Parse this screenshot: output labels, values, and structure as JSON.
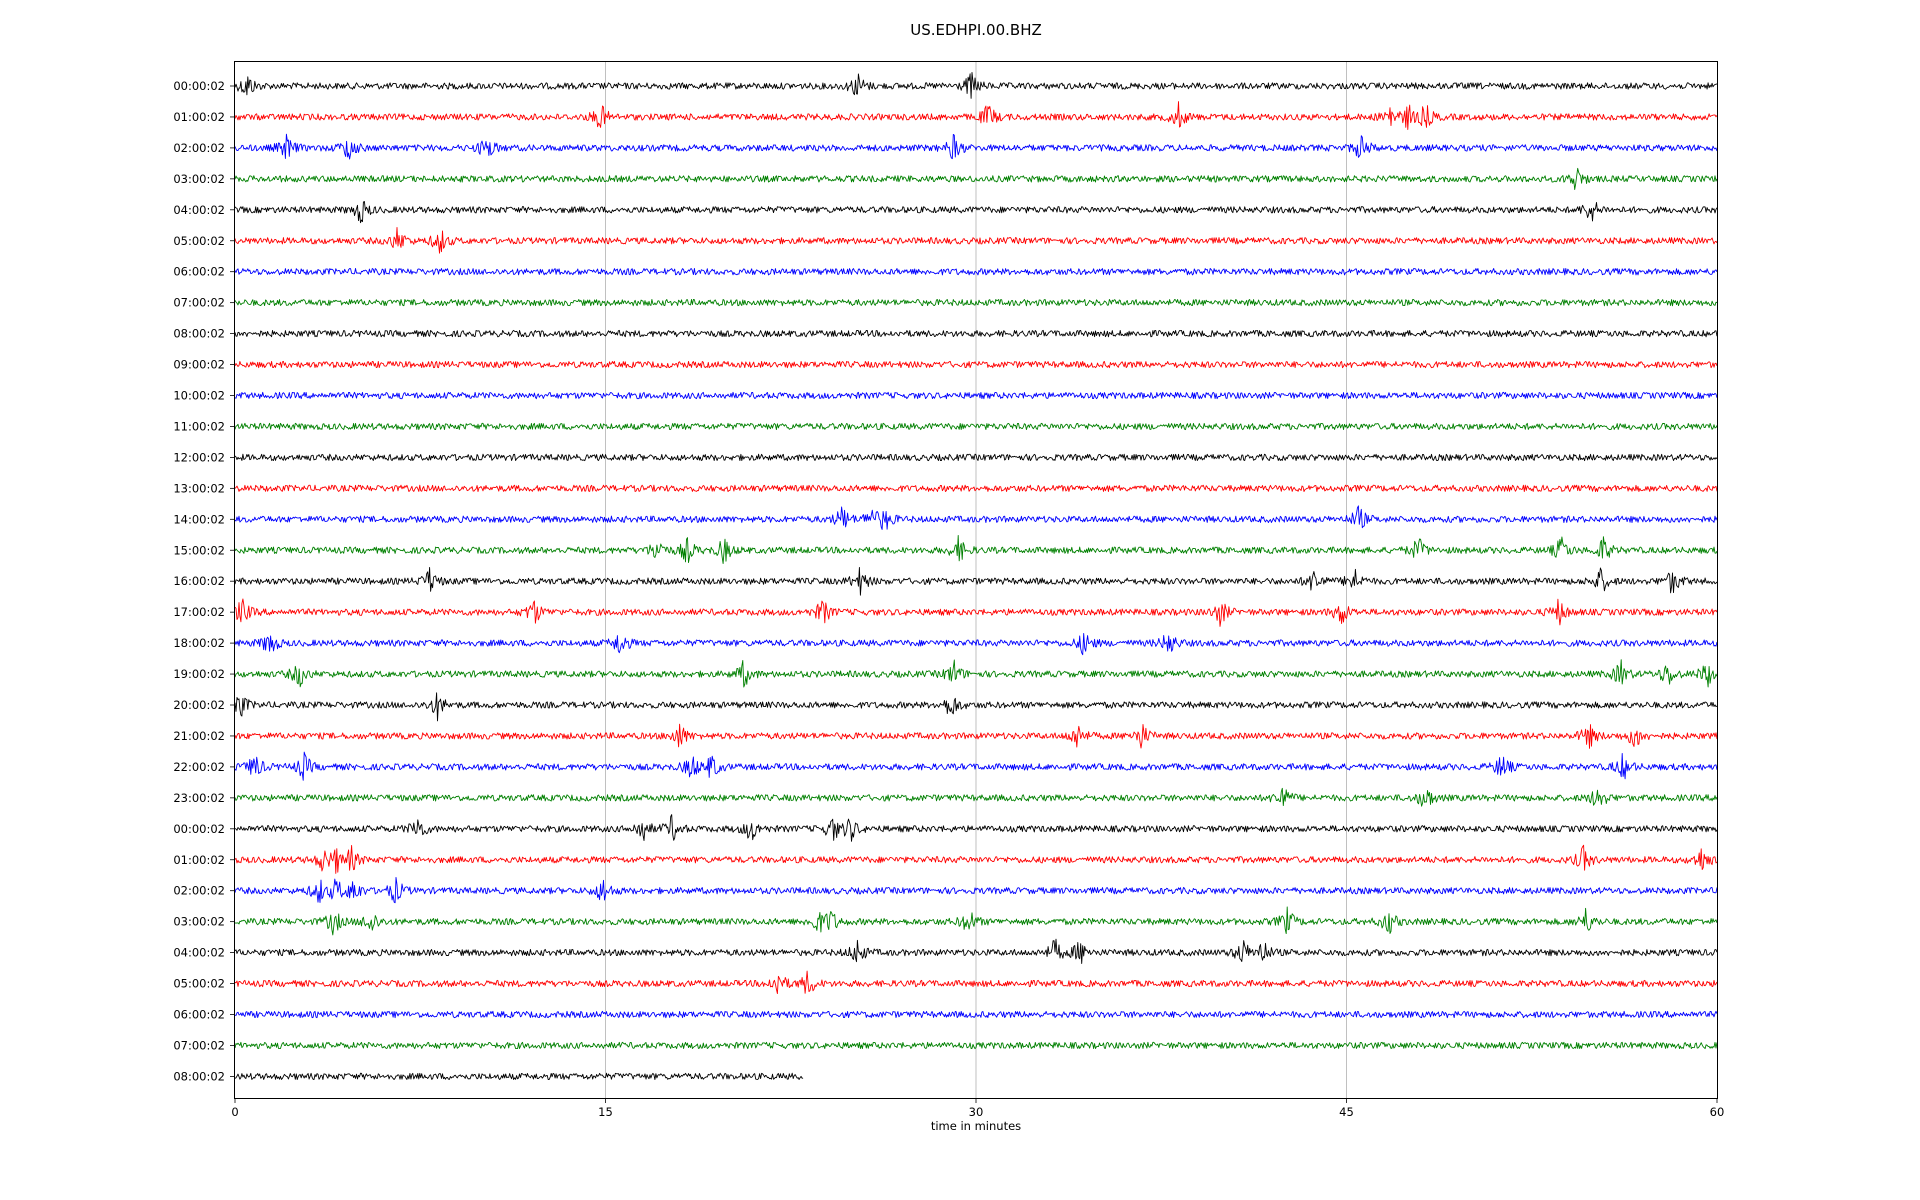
{
  "chart_data": {
    "type": "line",
    "title": "US.EDHPI.00.BHZ",
    "xlabel": "time in minutes",
    "ylabel": "",
    "xlim": [
      0,
      60
    ],
    "x_ticks": [
      "0",
      "15",
      "30",
      "45",
      "60"
    ],
    "x_tick_values": [
      0,
      15,
      30,
      45,
      60
    ],
    "grid": "vertical",
    "color_cycle": [
      "#000000",
      "#ff0000",
      "#0000ff",
      "#008000"
    ],
    "rows": [
      {
        "label": "00:00:02",
        "end_minute": 60,
        "events": [
          0.5,
          25.2,
          29.8
        ]
      },
      {
        "label": "01:00:02",
        "end_minute": 60,
        "events": [
          14.8,
          30.5,
          38.2,
          46.8,
          47.5,
          48.2
        ]
      },
      {
        "label": "02:00:02",
        "end_minute": 60,
        "events": [
          2.1,
          4.6,
          10.2,
          29.1,
          45.6
        ]
      },
      {
        "label": "03:00:02",
        "end_minute": 60,
        "events": [
          54.3
        ]
      },
      {
        "label": "04:00:02",
        "end_minute": 60,
        "events": [
          5.1,
          54.9
        ]
      },
      {
        "label": "05:00:02",
        "end_minute": 60,
        "events": [
          6.6,
          8.3
        ]
      },
      {
        "label": "06:00:02",
        "end_minute": 60,
        "events": []
      },
      {
        "label": "07:00:02",
        "end_minute": 60,
        "events": []
      },
      {
        "label": "08:00:02",
        "end_minute": 60,
        "events": []
      },
      {
        "label": "09:00:02",
        "end_minute": 60,
        "events": []
      },
      {
        "label": "10:00:02",
        "end_minute": 60,
        "events": []
      },
      {
        "label": "11:00:02",
        "end_minute": 60,
        "events": []
      },
      {
        "label": "12:00:02",
        "end_minute": 60,
        "events": []
      },
      {
        "label": "13:00:02",
        "end_minute": 60,
        "events": []
      },
      {
        "label": "14:00:02",
        "end_minute": 60,
        "events": [
          24.6,
          25.8,
          26.3,
          45.5
        ]
      },
      {
        "label": "15:00:02",
        "end_minute": 60,
        "events": [
          17.1,
          18.3,
          19.8,
          29.3,
          47.9,
          53.7,
          55.4
        ]
      },
      {
        "label": "16:00:02",
        "end_minute": 60,
        "events": [
          7.9,
          25.3,
          43.7,
          45.3,
          55.3,
          58.2
        ]
      },
      {
        "label": "17:00:02",
        "end_minute": 60,
        "events": [
          0.3,
          12.1,
          23.8,
          39.9,
          44.8,
          53.6
        ]
      },
      {
        "label": "18:00:02",
        "end_minute": 60,
        "events": [
          1.4,
          15.6,
          34.4,
          37.8
        ]
      },
      {
        "label": "19:00:02",
        "end_minute": 60,
        "events": [
          2.6,
          20.6,
          29.1,
          56.1,
          58.0,
          59.6
        ]
      },
      {
        "label": "20:00:02",
        "end_minute": 60,
        "events": [
          0.2,
          8.2,
          29.0
        ]
      },
      {
        "label": "21:00:02",
        "end_minute": 60,
        "events": [
          18.0,
          34.1,
          36.7,
          54.8,
          56.7
        ]
      },
      {
        "label": "22:00:02",
        "end_minute": 60,
        "events": [
          0.8,
          2.8,
          18.5,
          19.3,
          51.3,
          56.2
        ]
      },
      {
        "label": "23:00:02",
        "end_minute": 60,
        "events": [
          42.4,
          48.2,
          55.2
        ]
      },
      {
        "label": "00:00:02",
        "end_minute": 60,
        "events": [
          7.4,
          16.5,
          17.7,
          20.9,
          24.2,
          24.9
        ]
      },
      {
        "label": "01:00:02",
        "end_minute": 60,
        "events": [
          3.6,
          4.1,
          4.7,
          54.6,
          59.4
        ]
      },
      {
        "label": "02:00:02",
        "end_minute": 60,
        "events": [
          3.4,
          4.1,
          4.8,
          6.5,
          14.9
        ]
      },
      {
        "label": "03:00:02",
        "end_minute": 60,
        "events": [
          4.0,
          5.5,
          23.6,
          24.1,
          29.7,
          42.6,
          46.7,
          54.7
        ]
      },
      {
        "label": "04:00:02",
        "end_minute": 60,
        "events": [
          25.2,
          33.2,
          34.2,
          40.8,
          41.6
        ]
      },
      {
        "label": "05:00:02",
        "end_minute": 60,
        "events": [
          22.0,
          23.2
        ]
      },
      {
        "label": "06:00:02",
        "end_minute": 60,
        "events": []
      },
      {
        "label": "07:00:02",
        "end_minute": 60,
        "events": []
      },
      {
        "label": "08:00:02",
        "end_minute": 23.0,
        "events": []
      }
    ]
  }
}
